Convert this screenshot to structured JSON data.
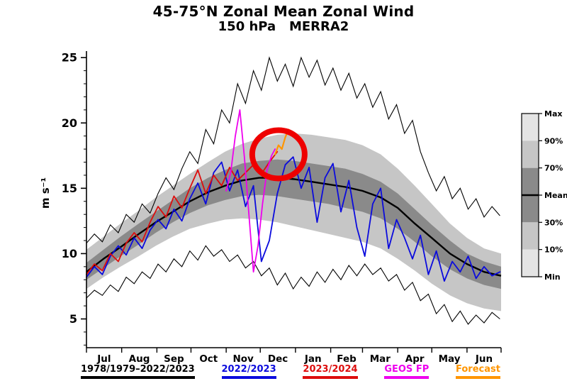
{
  "title": {
    "line1": "45-75°N Zonal Mean Zonal Wind",
    "line2": "150 hPa   MERRA2"
  },
  "axes": {
    "ylabel": "m s⁻¹"
  },
  "colors": {
    "band_light": "#c6c6c6",
    "band_dark": "#8a8a8a",
    "band_outer_key": "#e4e4e4",
    "mean": "#000000",
    "maxmin": "#000000",
    "blue": "#0b0bdd",
    "red": "#dd0d0d",
    "magenta": "#ee00ee",
    "orange": "#ff9500",
    "circle": "#ee0000"
  },
  "percentile_key": {
    "labels": [
      "Max",
      "90%",
      "70%",
      "Mean",
      "30%",
      "10%",
      "Min"
    ]
  },
  "legend": {
    "items": [
      {
        "label": "1978/1979–2022/2023",
        "color": "#000000"
      },
      {
        "label": "2022/2023",
        "color": "#0b0bdd"
      },
      {
        "label": "2023/2024",
        "color": "#dd0d0d"
      },
      {
        "label": "GEOS FP",
        "color": "#ee00ee"
      },
      {
        "label": "Forecast",
        "color": "#ff9500"
      }
    ]
  },
  "chart_data": {
    "type": "line",
    "title": "45-75°N Zonal Mean Zonal Wind, 150 hPa, MERRA2",
    "xlabel": "month (Jul–Jun)",
    "ylabel": "m s-1",
    "ylim": [
      2.8,
      25.5
    ],
    "x_max_day": 365,
    "x_unit": "days since Jul 1",
    "yticks": [
      5,
      10,
      15,
      20,
      25
    ],
    "month_labels": [
      "Jul",
      "Aug",
      "Sep",
      "Oct",
      "Nov",
      "Dec",
      "Jan",
      "Feb",
      "Mar",
      "Apr",
      "May",
      "Jun"
    ],
    "month_boundaries": [
      0,
      31,
      62,
      92,
      123,
      153,
      184,
      215,
      243,
      274,
      304,
      335,
      365
    ],
    "climatology": {
      "name": "1978/1979–2022/2023",
      "x": [
        0,
        15,
        30,
        46,
        61,
        76,
        91,
        107,
        122,
        137,
        152,
        168,
        183,
        198,
        213,
        228,
        243,
        259,
        274,
        289,
        304,
        320,
        335,
        350,
        365
      ],
      "mean": [
        8.6,
        9.6,
        10.5,
        11.5,
        12.4,
        13.2,
        14.0,
        14.7,
        15.2,
        15.6,
        15.8,
        15.8,
        15.7,
        15.5,
        15.3,
        15.1,
        14.8,
        14.3,
        13.5,
        12.3,
        11.2,
        10.0,
        9.2,
        8.6,
        8.3
      ],
      "p90": [
        10.3,
        11.3,
        12.3,
        13.3,
        14.3,
        15.2,
        16.1,
        17.0,
        17.8,
        18.4,
        18.8,
        19.1,
        19.2,
        19.1,
        18.9,
        18.7,
        18.3,
        17.6,
        16.5,
        15.2,
        13.8,
        12.3,
        11.2,
        10.4,
        10.0
      ],
      "p70": [
        9.3,
        10.3,
        11.3,
        12.3,
        13.2,
        14.1,
        15.0,
        15.8,
        16.4,
        16.9,
        17.1,
        17.2,
        17.1,
        16.9,
        16.7,
        16.5,
        16.1,
        15.5,
        14.6,
        13.4,
        12.2,
        11.0,
        10.0,
        9.4,
        9.0
      ],
      "p30": [
        8.0,
        8.9,
        9.8,
        10.7,
        11.6,
        12.4,
        13.1,
        13.7,
        14.1,
        14.4,
        14.5,
        14.4,
        14.2,
        14.0,
        13.8,
        13.5,
        13.2,
        12.7,
        11.9,
        10.9,
        9.8,
        8.8,
        8.1,
        7.6,
        7.3
      ],
      "p10": [
        7.3,
        8.2,
        9.0,
        9.8,
        10.6,
        11.3,
        11.9,
        12.3,
        12.6,
        12.7,
        12.6,
        12.4,
        12.1,
        11.8,
        11.5,
        11.2,
        10.9,
        10.4,
        9.6,
        8.7,
        7.7,
        6.8,
        6.2,
        5.8,
        5.6
      ],
      "x_step_weekly": 7,
      "max_values": [
        10.8,
        11.5,
        10.9,
        12.2,
        11.6,
        13.0,
        12.4,
        13.8,
        13.1,
        14.6,
        15.8,
        14.9,
        16.5,
        17.8,
        16.9,
        19.5,
        18.4,
        21.0,
        20.0,
        23.0,
        21.5,
        24.0,
        22.5,
        25.0,
        23.2,
        24.5,
        22.8,
        25.0,
        23.5,
        24.8,
        22.9,
        24.2,
        22.5,
        23.8,
        21.9,
        23.0,
        21.2,
        22.4,
        20.3,
        21.4,
        19.2,
        20.2,
        17.8,
        16.2,
        14.8,
        15.9,
        14.2,
        15.0,
        13.4,
        14.2,
        12.8,
        13.6,
        12.9
      ],
      "min_values": [
        6.6,
        7.2,
        6.8,
        7.6,
        7.1,
        8.2,
        7.7,
        8.6,
        8.1,
        9.2,
        8.6,
        9.6,
        9.0,
        10.2,
        9.5,
        10.6,
        9.8,
        10.3,
        9.4,
        9.9,
        8.9,
        9.4,
        8.3,
        8.9,
        7.6,
        8.5,
        7.3,
        8.2,
        7.5,
        8.6,
        7.8,
        8.8,
        8.0,
        9.1,
        8.3,
        9.2,
        8.4,
        8.9,
        7.9,
        8.4,
        7.2,
        7.8,
        6.4,
        6.9,
        5.4,
        6.1,
        4.8,
        5.6,
        4.6,
        5.3,
        4.7,
        5.5,
        5.0
      ]
    },
    "series": [
      {
        "id": "2022-2023",
        "name": "2022/2023",
        "color": "#0b0bdd",
        "x_start": 0,
        "x_step": 7,
        "values": [
          8.2,
          9.0,
          8.4,
          9.8,
          10.6,
          9.9,
          11.2,
          10.4,
          11.8,
          12.6,
          11.9,
          13.4,
          12.5,
          14.2,
          15.4,
          13.8,
          16.2,
          17.0,
          14.8,
          16.4,
          13.6,
          15.2,
          9.4,
          11.0,
          14.6,
          16.8,
          17.4,
          15.0,
          16.6,
          12.4,
          15.8,
          16.9,
          13.2,
          15.6,
          12.0,
          9.8,
          13.8,
          15.0,
          10.4,
          12.6,
          11.2,
          9.6,
          11.4,
          8.4,
          10.2,
          7.9,
          9.4,
          8.6,
          9.8,
          8.1,
          9.0,
          8.3,
          8.6
        ]
      },
      {
        "id": "2023-2024",
        "name": "2023/2024",
        "color": "#dd0d0d",
        "x_start": 0,
        "x_step": 7,
        "values": [
          8.4,
          9.2,
          8.7,
          10.0,
          9.4,
          10.8,
          11.6,
          10.9,
          12.4,
          13.6,
          12.8,
          14.4,
          13.5,
          15.0,
          16.4,
          14.6,
          16.0,
          15.2,
          16.6,
          15.6,
          16.2,
          16.8,
          16.1,
          17.0,
          17.8
        ]
      },
      {
        "id": "geos-fp",
        "name": "GEOS FP",
        "color": "#ee00ee",
        "x": [
          123,
          127,
          131,
          135,
          139,
          143,
          147,
          151,
          155,
          159,
          163,
          166
        ],
        "values": [
          14.8,
          16.2,
          19.0,
          21.0,
          17.4,
          13.0,
          8.6,
          10.6,
          13.8,
          16.4,
          17.5,
          18.0
        ]
      },
      {
        "id": "forecast",
        "name": "Forecast",
        "color": "#ff9500",
        "x": [
          166,
          169,
          172,
          175,
          178
        ],
        "values": [
          17.6,
          18.3,
          18.0,
          18.9,
          19.5
        ]
      }
    ],
    "annotation_circle": {
      "x_day": 169,
      "value": 17.6
    },
    "grid": false,
    "legend_position": "bottom"
  }
}
